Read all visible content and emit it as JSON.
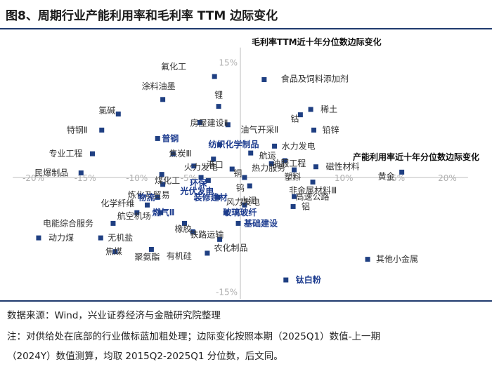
{
  "title": "图8、周期行业产能利用率和毛利率 TTM 边际变化",
  "footer": {
    "source": "数据来源：Wind，兴业证券经济与金融研究院整理",
    "note_line1": "注：对供给处在底部的行业做标蓝加粗处理；边际变化按照本期（2025Q1）数值-上一期",
    "note_line2": "（2024Y）数值测算，均取 2015Q2-2025Q1 分位数，后文同。"
  },
  "colors": {
    "marker": "#1f3f82",
    "bold_label": "#1d3c8f",
    "axis": "#bdbdbd",
    "rule": "#1f3a6e"
  },
  "chart_data": {
    "type": "scatter",
    "xlabel": "产能利用率近十年分位数边际变化",
    "ylabel": "毛利率TTM近十年分位数边际变化",
    "xlim": [
      -22,
      22
    ],
    "ylim": [
      -16,
      17
    ],
    "x_ticks": [
      {
        "v": -20,
        "t": "-20%"
      },
      {
        "v": -15,
        "t": "-15%"
      },
      {
        "v": -10,
        "t": "-10%"
      },
      {
        "v": -5,
        "t": "-5%"
      },
      {
        "v": 5,
        "t": "5%"
      },
      {
        "v": 10,
        "t": "10%"
      },
      {
        "v": 15,
        "t": "15%"
      },
      {
        "v": 20,
        "t": "20%"
      }
    ],
    "y_ticks": [
      {
        "v": 15,
        "t": "15%"
      },
      {
        "v": -15,
        "t": "-15%"
      }
    ],
    "points": [
      {
        "name": "氟化工",
        "x": -2.5,
        "y": 13.2,
        "bold": false
      },
      {
        "name": "食品及饲料添加剂",
        "x": 2.3,
        "y": 12.8,
        "bold": false
      },
      {
        "name": "涂料油墨",
        "x": -7.5,
        "y": 10.2,
        "bold": false
      },
      {
        "name": "锂",
        "x": -2.1,
        "y": 9.3,
        "bold": false
      },
      {
        "name": "稀土",
        "x": 6.8,
        "y": 8.9,
        "bold": false
      },
      {
        "name": "氯碱",
        "x": -11.8,
        "y": 8.3,
        "bold": false
      },
      {
        "name": "钴",
        "x": 5.8,
        "y": 8.2,
        "bold": false
      },
      {
        "name": "房屋建设Ⅱ",
        "x": -3.9,
        "y": 7.2,
        "bold": false
      },
      {
        "name": "油气开采Ⅱ",
        "x": -1.2,
        "y": 6.9,
        "bold": false
      },
      {
        "name": "特钢Ⅱ",
        "x": -13.4,
        "y": 6.2,
        "bold": false
      },
      {
        "name": "铅锌",
        "x": 7.1,
        "y": 6.2,
        "bold": false
      },
      {
        "name": "普钢",
        "x": -8.0,
        "y": 5.1,
        "bold": true
      },
      {
        "name": "纺织化学制品",
        "x": -2.0,
        "y": 4.3,
        "bold": true
      },
      {
        "name": "水力发电",
        "x": 3.3,
        "y": 4.1,
        "bold": false
      },
      {
        "name": "航运",
        "x": 1.0,
        "y": 3.2,
        "bold": false
      },
      {
        "name": "专业工程",
        "x": -14.3,
        "y": 3.1,
        "bold": false
      },
      {
        "name": "焦炭Ⅲ",
        "x": -6.5,
        "y": 3.1,
        "bold": false
      },
      {
        "name": "港口",
        "x": -2.6,
        "y": 2.4,
        "bold": false
      },
      {
        "name": "油服工程",
        "x": 4.3,
        "y": 2.2,
        "bold": false
      },
      {
        "name": "热力服务",
        "x": 3.0,
        "y": 1.8,
        "bold": false
      },
      {
        "name": "火力发电",
        "x": -4.5,
        "y": 1.5,
        "bold": false
      },
      {
        "name": "磁性材料",
        "x": 7.3,
        "y": 1.4,
        "bold": false
      },
      {
        "name": "铜",
        "x": -0.8,
        "y": 1.1,
        "bold": false
      },
      {
        "name": "塑料",
        "x": 5.2,
        "y": 1.0,
        "bold": false
      },
      {
        "name": "民爆制品",
        "x": -15.4,
        "y": 0.6,
        "bold": false
      },
      {
        "name": "黄金",
        "x": 15.6,
        "y": 0.7,
        "bold": false
      },
      {
        "name": "煤化工",
        "x": -7.6,
        "y": 0.4,
        "bold": false
      },
      {
        "name": "环保",
        "x": -3.8,
        "y": 0.0,
        "bold": true
      },
      {
        "name": "钨",
        "x": 0.4,
        "y": 0.0,
        "bold": false
      },
      {
        "name": "光伏发电",
        "x": -3.1,
        "y": -0.4,
        "bold": true
      },
      {
        "name": "非金属材料Ⅲ",
        "x": 7.0,
        "y": -0.6,
        "bold": false
      },
      {
        "name": "炼化及贸易",
        "x": -7.5,
        "y": -0.9,
        "bold": false
      },
      {
        "name": "水泥",
        "x": 0.9,
        "y": -1.1,
        "bold": false
      },
      {
        "name": "物流",
        "x": -8.0,
        "y": -2.6,
        "bold": true
      },
      {
        "name": "装修建材",
        "x": -2.2,
        "y": -2.6,
        "bold": true
      },
      {
        "name": "高速公路",
        "x": 5.2,
        "y": -2.5,
        "bold": false
      },
      {
        "name": "化学纤维",
        "x": -9.0,
        "y": -3.6,
        "bold": false
      },
      {
        "name": "风力发电",
        "x": 0.4,
        "y": -3.6,
        "bold": false
      },
      {
        "name": "铝",
        "x": 5.1,
        "y": -3.8,
        "bold": false
      },
      {
        "name": "航空机场",
        "x": -10.0,
        "y": -4.6,
        "bold": false
      },
      {
        "name": "燃气Ⅱ",
        "x": -7.7,
        "y": -4.6,
        "bold": true
      },
      {
        "name": "玻璃玻纤",
        "x": -1.4,
        "y": -4.6,
        "bold": true
      },
      {
        "name": "电能综合服务",
        "x": -12.3,
        "y": -6.0,
        "bold": false
      },
      {
        "name": "橡胶",
        "x": -5.4,
        "y": -6.0,
        "bold": false
      },
      {
        "name": "基础建设",
        "x": -0.2,
        "y": -6.0,
        "bold": true
      },
      {
        "name": "铁路运输",
        "x": -4.6,
        "y": -7.1,
        "bold": false
      },
      {
        "name": "动力煤",
        "x": -19.5,
        "y": -7.9,
        "bold": false
      },
      {
        "name": "无机盐",
        "x": -13.5,
        "y": -7.9,
        "bold": false
      },
      {
        "name": "农化制品",
        "x": -2.0,
        "y": -8.1,
        "bold": false
      },
      {
        "name": "焦煤",
        "x": -12.1,
        "y": -9.7,
        "bold": false
      },
      {
        "name": "聚氨酯",
        "x": -8.6,
        "y": -9.4,
        "bold": false
      },
      {
        "name": "有机硅",
        "x": -3.2,
        "y": -9.9,
        "bold": false
      },
      {
        "name": "其他小金属",
        "x": 12.3,
        "y": -10.7,
        "bold": false
      },
      {
        "name": "钛白粉",
        "x": 4.4,
        "y": -13.4,
        "bold": true
      }
    ]
  }
}
